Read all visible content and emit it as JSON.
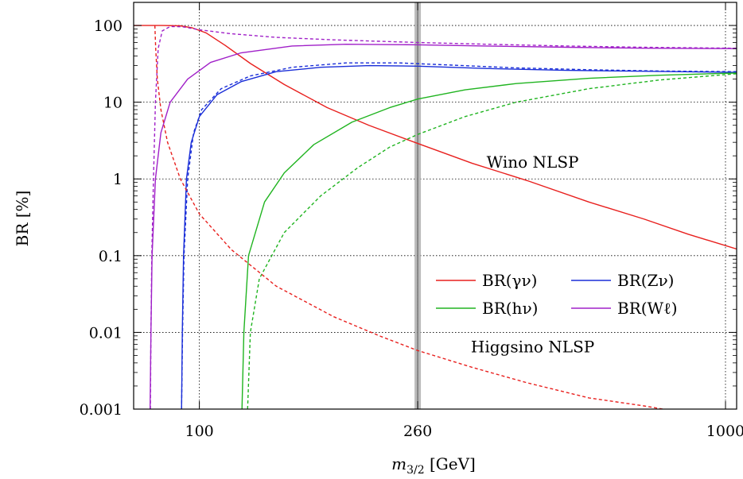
{
  "chart_data": {
    "type": "line",
    "title": "",
    "xlabel": "m",
    "xlabel_sub": "3/2",
    "xlabel_unit": " [GeV]",
    "ylabel": "BR [%]",
    "xscale": "log",
    "yscale": "log",
    "xlim": [
      75,
      1050
    ],
    "ylim": [
      0.001,
      200
    ],
    "grid": true,
    "xticks": [
      {
        "value": 100,
        "label": "100"
      },
      {
        "value": 260,
        "label": "260"
      },
      {
        "value": 1000,
        "label": "1000"
      }
    ],
    "yticks": [
      {
        "value": 100,
        "label": "100"
      },
      {
        "value": 10,
        "label": "10"
      },
      {
        "value": 1,
        "label": "1"
      },
      {
        "value": 0.1,
        "label": "0.1"
      },
      {
        "value": 0.01,
        "label": "0.01"
      },
      {
        "value": 0.001,
        "label": "0.001"
      }
    ],
    "vertical_band": {
      "x": 260,
      "color": "#aaaaaa"
    },
    "annotations": [
      {
        "text": "Wino NLSP",
        "x": 430,
        "y": 1.4
      },
      {
        "text": "Higgsino NLSP",
        "x": 430,
        "y": 0.0055
      }
    ],
    "legend": {
      "placement": "center-right",
      "entries": [
        {
          "label": "BR(γν)",
          "color": "#e8201e"
        },
        {
          "label": "BR(Zν)",
          "color": "#1a2ed8"
        },
        {
          "label": "BR(hν)",
          "color": "#20b420"
        },
        {
          "label": "BR(Wℓ)",
          "color": "#a020c8"
        }
      ]
    },
    "series": [
      {
        "name": "BR(γν)",
        "model": "Wino",
        "style": "solid",
        "color": "#e8201e",
        "points": [
          [
            75,
            100
          ],
          [
            85,
            100
          ],
          [
            92,
            99
          ],
          [
            97,
            93
          ],
          [
            103,
            80
          ],
          [
            112,
            55
          ],
          [
            125,
            32
          ],
          [
            145,
            17
          ],
          [
            175,
            8.5
          ],
          [
            210,
            5
          ],
          [
            260,
            2.9
          ],
          [
            330,
            1.6
          ],
          [
            420,
            0.95
          ],
          [
            550,
            0.5
          ],
          [
            700,
            0.3
          ],
          [
            850,
            0.19
          ],
          [
            1050,
            0.122
          ]
        ]
      },
      {
        "name": "BR(Zν)",
        "model": "Wino",
        "style": "solid",
        "color": "#1a2ed8",
        "points": [
          [
            92.5,
            0.001
          ],
          [
            92.8,
            0.01
          ],
          [
            93.3,
            0.1
          ],
          [
            94.5,
            1
          ],
          [
            96.5,
            3
          ],
          [
            100,
            6.5
          ],
          [
            108,
            12.5
          ],
          [
            120,
            18.5
          ],
          [
            140,
            25
          ],
          [
            170,
            28.5
          ],
          [
            210,
            30
          ],
          [
            260,
            29.5
          ],
          [
            350,
            27.5
          ],
          [
            500,
            26
          ],
          [
            700,
            25.3
          ],
          [
            1050,
            24.5
          ]
        ]
      },
      {
        "name": "BR(Zν)",
        "model": "Higgsino",
        "style": "dashed",
        "color": "#1a2ed8",
        "points": [
          [
            92.5,
            0.001
          ],
          [
            92.9,
            0.01
          ],
          [
            93.5,
            0.1
          ],
          [
            95,
            1
          ],
          [
            97.5,
            4
          ],
          [
            101,
            8
          ],
          [
            110,
            15
          ],
          [
            125,
            22
          ],
          [
            150,
            28.5
          ],
          [
            190,
            32.5
          ],
          [
            240,
            32.5
          ],
          [
            300,
            30.5
          ],
          [
            400,
            28
          ],
          [
            550,
            26.5
          ],
          [
            750,
            25.5
          ],
          [
            1050,
            25
          ]
        ]
      },
      {
        "name": "BR(Wℓ)",
        "model": "Wino",
        "style": "solid",
        "color": "#a020c8",
        "points": [
          [
            80.6,
            0.001
          ],
          [
            80.9,
            0.01
          ],
          [
            81.3,
            0.1
          ],
          [
            82.5,
            1
          ],
          [
            84.5,
            4
          ],
          [
            88,
            10
          ],
          [
            95,
            20
          ],
          [
            105,
            33
          ],
          [
            120,
            44
          ],
          [
            150,
            54
          ],
          [
            190,
            57
          ],
          [
            260,
            56
          ],
          [
            350,
            54
          ],
          [
            500,
            52
          ],
          [
            700,
            50.5
          ],
          [
            1050,
            50
          ]
        ]
      },
      {
        "name": "BR(Wℓ)",
        "model": "Higgsino",
        "style": "dashed",
        "color": "#a020c8",
        "points": [
          [
            80.7,
            0.001
          ],
          [
            80.9,
            0.01
          ],
          [
            81.2,
            0.1
          ],
          [
            81.8,
            1
          ],
          [
            82.5,
            10
          ],
          [
            83.5,
            50
          ],
          [
            85,
            85
          ],
          [
            88,
            97
          ],
          [
            93,
            96
          ],
          [
            100,
            88
          ],
          [
            115,
            78
          ],
          [
            140,
            70
          ],
          [
            180,
            65
          ],
          [
            260,
            60
          ],
          [
            350,
            57
          ],
          [
            500,
            54
          ],
          [
            700,
            52
          ],
          [
            1050,
            50.5
          ]
        ]
      },
      {
        "name": "BR(hν)",
        "model": "Wino",
        "style": "solid",
        "color": "#20b420",
        "points": [
          [
            120.5,
            0.001
          ],
          [
            121.5,
            0.01
          ],
          [
            124,
            0.1
          ],
          [
            133,
            0.5
          ],
          [
            145,
            1.2
          ],
          [
            165,
            2.8
          ],
          [
            195,
            5.5
          ],
          [
            230,
            8.5
          ],
          [
            260,
            11
          ],
          [
            320,
            14.5
          ],
          [
            400,
            17.5
          ],
          [
            550,
            20.5
          ],
          [
            750,
            22.5
          ],
          [
            1050,
            24
          ]
        ]
      },
      {
        "name": "BR(hν)",
        "model": "Higgsino",
        "style": "dashed",
        "color": "#20b420",
        "points": [
          [
            123.5,
            0.001
          ],
          [
            125,
            0.01
          ],
          [
            130,
            0.05
          ],
          [
            145,
            0.2
          ],
          [
            170,
            0.6
          ],
          [
            200,
            1.4
          ],
          [
            230,
            2.6
          ],
          [
            260,
            3.8
          ],
          [
            320,
            6.5
          ],
          [
            400,
            10
          ],
          [
            550,
            15
          ],
          [
            750,
            19.5
          ],
          [
            1050,
            23.5
          ]
        ]
      },
      {
        "name": "BR(γν)",
        "model": "Higgsino",
        "style": "dashed",
        "color": "#e8201e",
        "points": [
          [
            82.3,
            100
          ],
          [
            82.6,
            50
          ],
          [
            83.2,
            20
          ],
          [
            84.5,
            8
          ],
          [
            87,
            3
          ],
          [
            92,
            1
          ],
          [
            100,
            0.35
          ],
          [
            115,
            0.12
          ],
          [
            140,
            0.04
          ],
          [
            180,
            0.016
          ],
          [
            220,
            0.009
          ],
          [
            260,
            0.0058
          ],
          [
            330,
            0.0035
          ],
          [
            420,
            0.0022
          ],
          [
            550,
            0.0014
          ],
          [
            700,
            0.0011
          ],
          [
            760,
            0.001
          ]
        ]
      }
    ]
  }
}
